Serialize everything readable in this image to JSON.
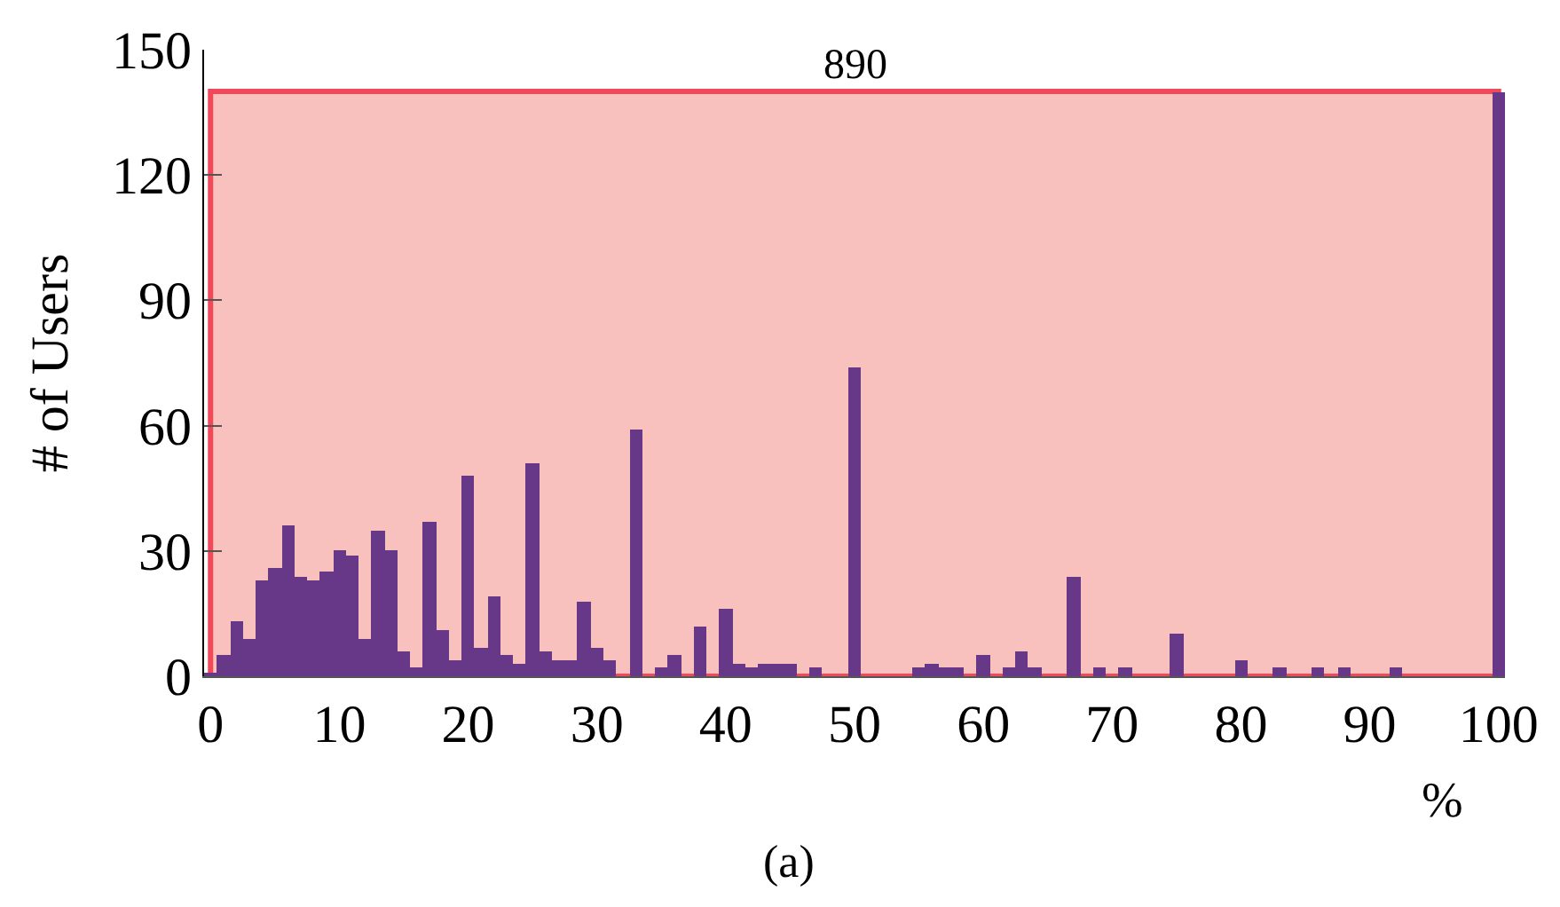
{
  "chart_data": {
    "type": "histogram",
    "bins": [
      -0.5,
      0.5,
      1.5,
      2.5,
      3.5,
      4.5,
      5.5,
      6.5,
      7.5,
      8.5,
      9.5,
      10.5,
      11.5,
      12.5,
      13.5,
      14.5,
      15.5,
      16.5,
      17.5,
      18.5,
      19.5,
      20.5,
      21.5,
      22.5,
      23.5,
      24.5,
      25.5,
      26.5,
      27.5,
      28.5,
      29.5,
      30.5,
      31.5,
      32.5,
      33.5,
      34.5,
      35.5,
      36.5,
      37.5,
      38.5,
      39.5,
      40.5,
      41.5,
      42.5,
      43.5,
      44.5,
      45.5,
      46.5,
      47.5,
      48.5,
      49.5,
      50.5,
      51.5,
      52.5,
      53.5,
      54.5,
      55.5,
      56.5,
      57.5,
      58.5,
      59.5,
      60.5,
      61.5,
      62.5,
      63.5,
      64.5,
      65.5,
      66.5,
      67.5,
      68.5,
      69.5,
      70.5,
      71.5,
      72.5,
      73.5,
      74.5,
      75.5,
      76.5,
      77.5,
      78.5,
      79.5,
      80.5,
      81.5,
      82.5,
      83.5,
      84.5,
      85.5,
      86.5,
      87.5,
      88.5,
      89.5,
      90.5,
      91.5,
      92.5,
      93.5,
      94.5,
      95.5,
      96.5,
      97.5,
      98.5,
      99.5,
      100.5
    ],
    "values": [
      1,
      5,
      13,
      9,
      23,
      26,
      36,
      24,
      23,
      25,
      30,
      29,
      9,
      35,
      30,
      6,
      2,
      37,
      11,
      4,
      48,
      7,
      19,
      5,
      3,
      51,
      6,
      4,
      4,
      18,
      7,
      4,
      0,
      59,
      0,
      2,
      5,
      0,
      12,
      0,
      16,
      3,
      2,
      3,
      3,
      3,
      0,
      2,
      0,
      0,
      74,
      0,
      0,
      0,
      0,
      2,
      3,
      2,
      2,
      0,
      5,
      0,
      2,
      6,
      2,
      0,
      0,
      24,
      0,
      2,
      0,
      2,
      0,
      0,
      0,
      10,
      0,
      0,
      0,
      0,
      4,
      0,
      0,
      2,
      0,
      0,
      2,
      0,
      2,
      0,
      0,
      0,
      2,
      0,
      0,
      0,
      0,
      0,
      0,
      0,
      140
    ],
    "color": "#663887",
    "ylabel": "# of Users",
    "xlabel": "%",
    "xlim": [
      -0.5,
      100.5
    ],
    "xticks": [
      0,
      10,
      20,
      30,
      40,
      50,
      60,
      70,
      80,
      90,
      100
    ],
    "ylim": [
      0,
      150
    ],
    "yticks": [
      0,
      30,
      60,
      90,
      120,
      150
    ],
    "bands": [
      {
        "axis": "x",
        "from": 0,
        "to": 100,
        "label": "890",
        "color": "#f9c1bd"
      }
    ],
    "annotations": [
      "(a)"
    ],
    "grid": false,
    "legend": false
  }
}
